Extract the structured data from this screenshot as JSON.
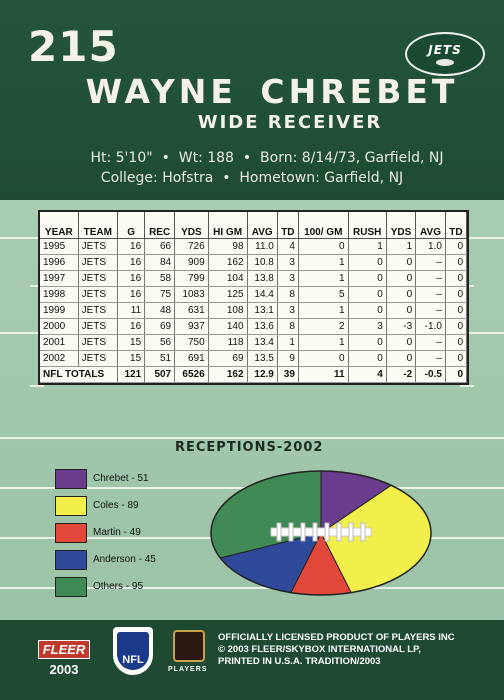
{
  "header": {
    "card_number": "215",
    "team_logo_text": "JETS",
    "first_name": "WAYNE",
    "last_name": "CHREBET",
    "position": "WIDE RECEIVER",
    "bio": {
      "height": "Ht: 5'10\"",
      "weight": "Wt: 188",
      "born": "Born: 8/14/73, Garfield, NJ",
      "college": "College: Hofstra",
      "hometown": "Hometown: Garfield, NJ"
    }
  },
  "stats": {
    "columns": [
      "YEAR",
      "TEAM",
      "G",
      "REC",
      "YDS",
      "HI GM",
      "AVG",
      "TD",
      "100/ GM",
      "RUSH",
      "YDS",
      "AVG",
      "TD"
    ],
    "rows": [
      [
        "1995",
        "JETS",
        "16",
        "66",
        "726",
        "98",
        "11.0",
        "4",
        "0",
        "1",
        "1",
        "1.0",
        "0"
      ],
      [
        "1996",
        "JETS",
        "16",
        "84",
        "909",
        "162",
        "10.8",
        "3",
        "1",
        "0",
        "0",
        "–",
        "0"
      ],
      [
        "1997",
        "JETS",
        "16",
        "58",
        "799",
        "104",
        "13.8",
        "3",
        "1",
        "0",
        "0",
        "–",
        "0"
      ],
      [
        "1998",
        "JETS",
        "16",
        "75",
        "1083",
        "125",
        "14.4",
        "8",
        "5",
        "0",
        "0",
        "–",
        "0"
      ],
      [
        "1999",
        "JETS",
        "11",
        "48",
        "631",
        "108",
        "13.1",
        "3",
        "1",
        "0",
        "0",
        "–",
        "0"
      ],
      [
        "2000",
        "JETS",
        "16",
        "69",
        "937",
        "140",
        "13.6",
        "8",
        "2",
        "3",
        "-3",
        "-1.0",
        "0"
      ],
      [
        "2001",
        "JETS",
        "15",
        "56",
        "750",
        "118",
        "13.4",
        "1",
        "1",
        "0",
        "0",
        "–",
        "0"
      ],
      [
        "2002",
        "JETS",
        "15",
        "51",
        "691",
        "69",
        "13.5",
        "9",
        "0",
        "0",
        "0",
        "–",
        "0"
      ]
    ],
    "totals": [
      "NFL TOTALS",
      "",
      "121",
      "507",
      "6526",
      "162",
      "12.9",
      "39",
      "11",
      "4",
      "-2",
      "-0.5",
      "0"
    ]
  },
  "chart_data": {
    "type": "pie",
    "title": "RECEPTIONS-2002",
    "categories": [
      "Chrebet",
      "Coles",
      "Martin",
      "Anderson",
      "Others"
    ],
    "values": [
      51,
      89,
      49,
      45,
      95
    ],
    "legend_labels": [
      "Chrebet - 51",
      "Coles - 89",
      "Martin - 49",
      "Anderson - 45",
      "Others - 95"
    ],
    "colors": [
      "#6a3d8f",
      "#f2ee4a",
      "#e2483a",
      "#2f4a9a",
      "#3f8a55"
    ],
    "legend_placement": "left"
  },
  "footer": {
    "brand": "FLEER",
    "year": "2003",
    "nfl": "NFL",
    "players": "PLAYERS",
    "license_lines": [
      "OFFICIALLY LICENSED PRODUCT OF PLAYERS INC",
      "© 2003 FLEER/SKYBOX INTERNATIONAL LP,",
      "PRINTED IN U.S.A. TRADITION/2003"
    ]
  }
}
